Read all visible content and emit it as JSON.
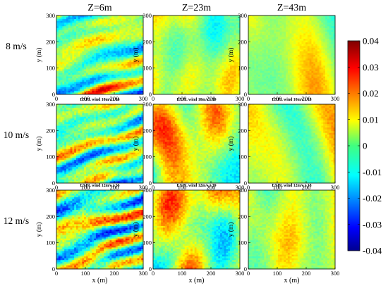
{
  "chart_data": {
    "type": "heatmap",
    "column_titles": [
      "Z=6m",
      "Z=23m",
      "Z=43m"
    ],
    "row_labels": [
      "8 m/s",
      "10 m/s",
      "12 m/s"
    ],
    "panel_captions": [
      [
        "EXPL wind 10m/s z 56",
        "EXPL wind 10m/s z 39",
        "EXPL wind 10m/s z 18"
      ],
      [
        "EXPL wind 12m/s z 56",
        "EXPL wind 12m/s z 39",
        "EXPL wind 12m/s z 18"
      ]
    ],
    "xlabel": "x (m)",
    "ylabel": "y (m)",
    "x_ticks": [
      0,
      100,
      200,
      300
    ],
    "y_ticks": [
      0,
      100,
      200,
      300
    ],
    "xlim": [
      0,
      300
    ],
    "ylim": [
      0,
      300
    ],
    "colorbar": {
      "min": -0.04,
      "max": 0.04,
      "tick_values": [
        0.04,
        0.03,
        0.02,
        0.01,
        0,
        -0.01,
        -0.02,
        -0.03,
        -0.04
      ],
      "tick_labels": [
        "0.04",
        "0.03",
        "0.02",
        "0.01",
        "0",
        "-0.01",
        "-0.02",
        "-0.03",
        "-0.04"
      ],
      "colormap": "jet"
    }
  }
}
